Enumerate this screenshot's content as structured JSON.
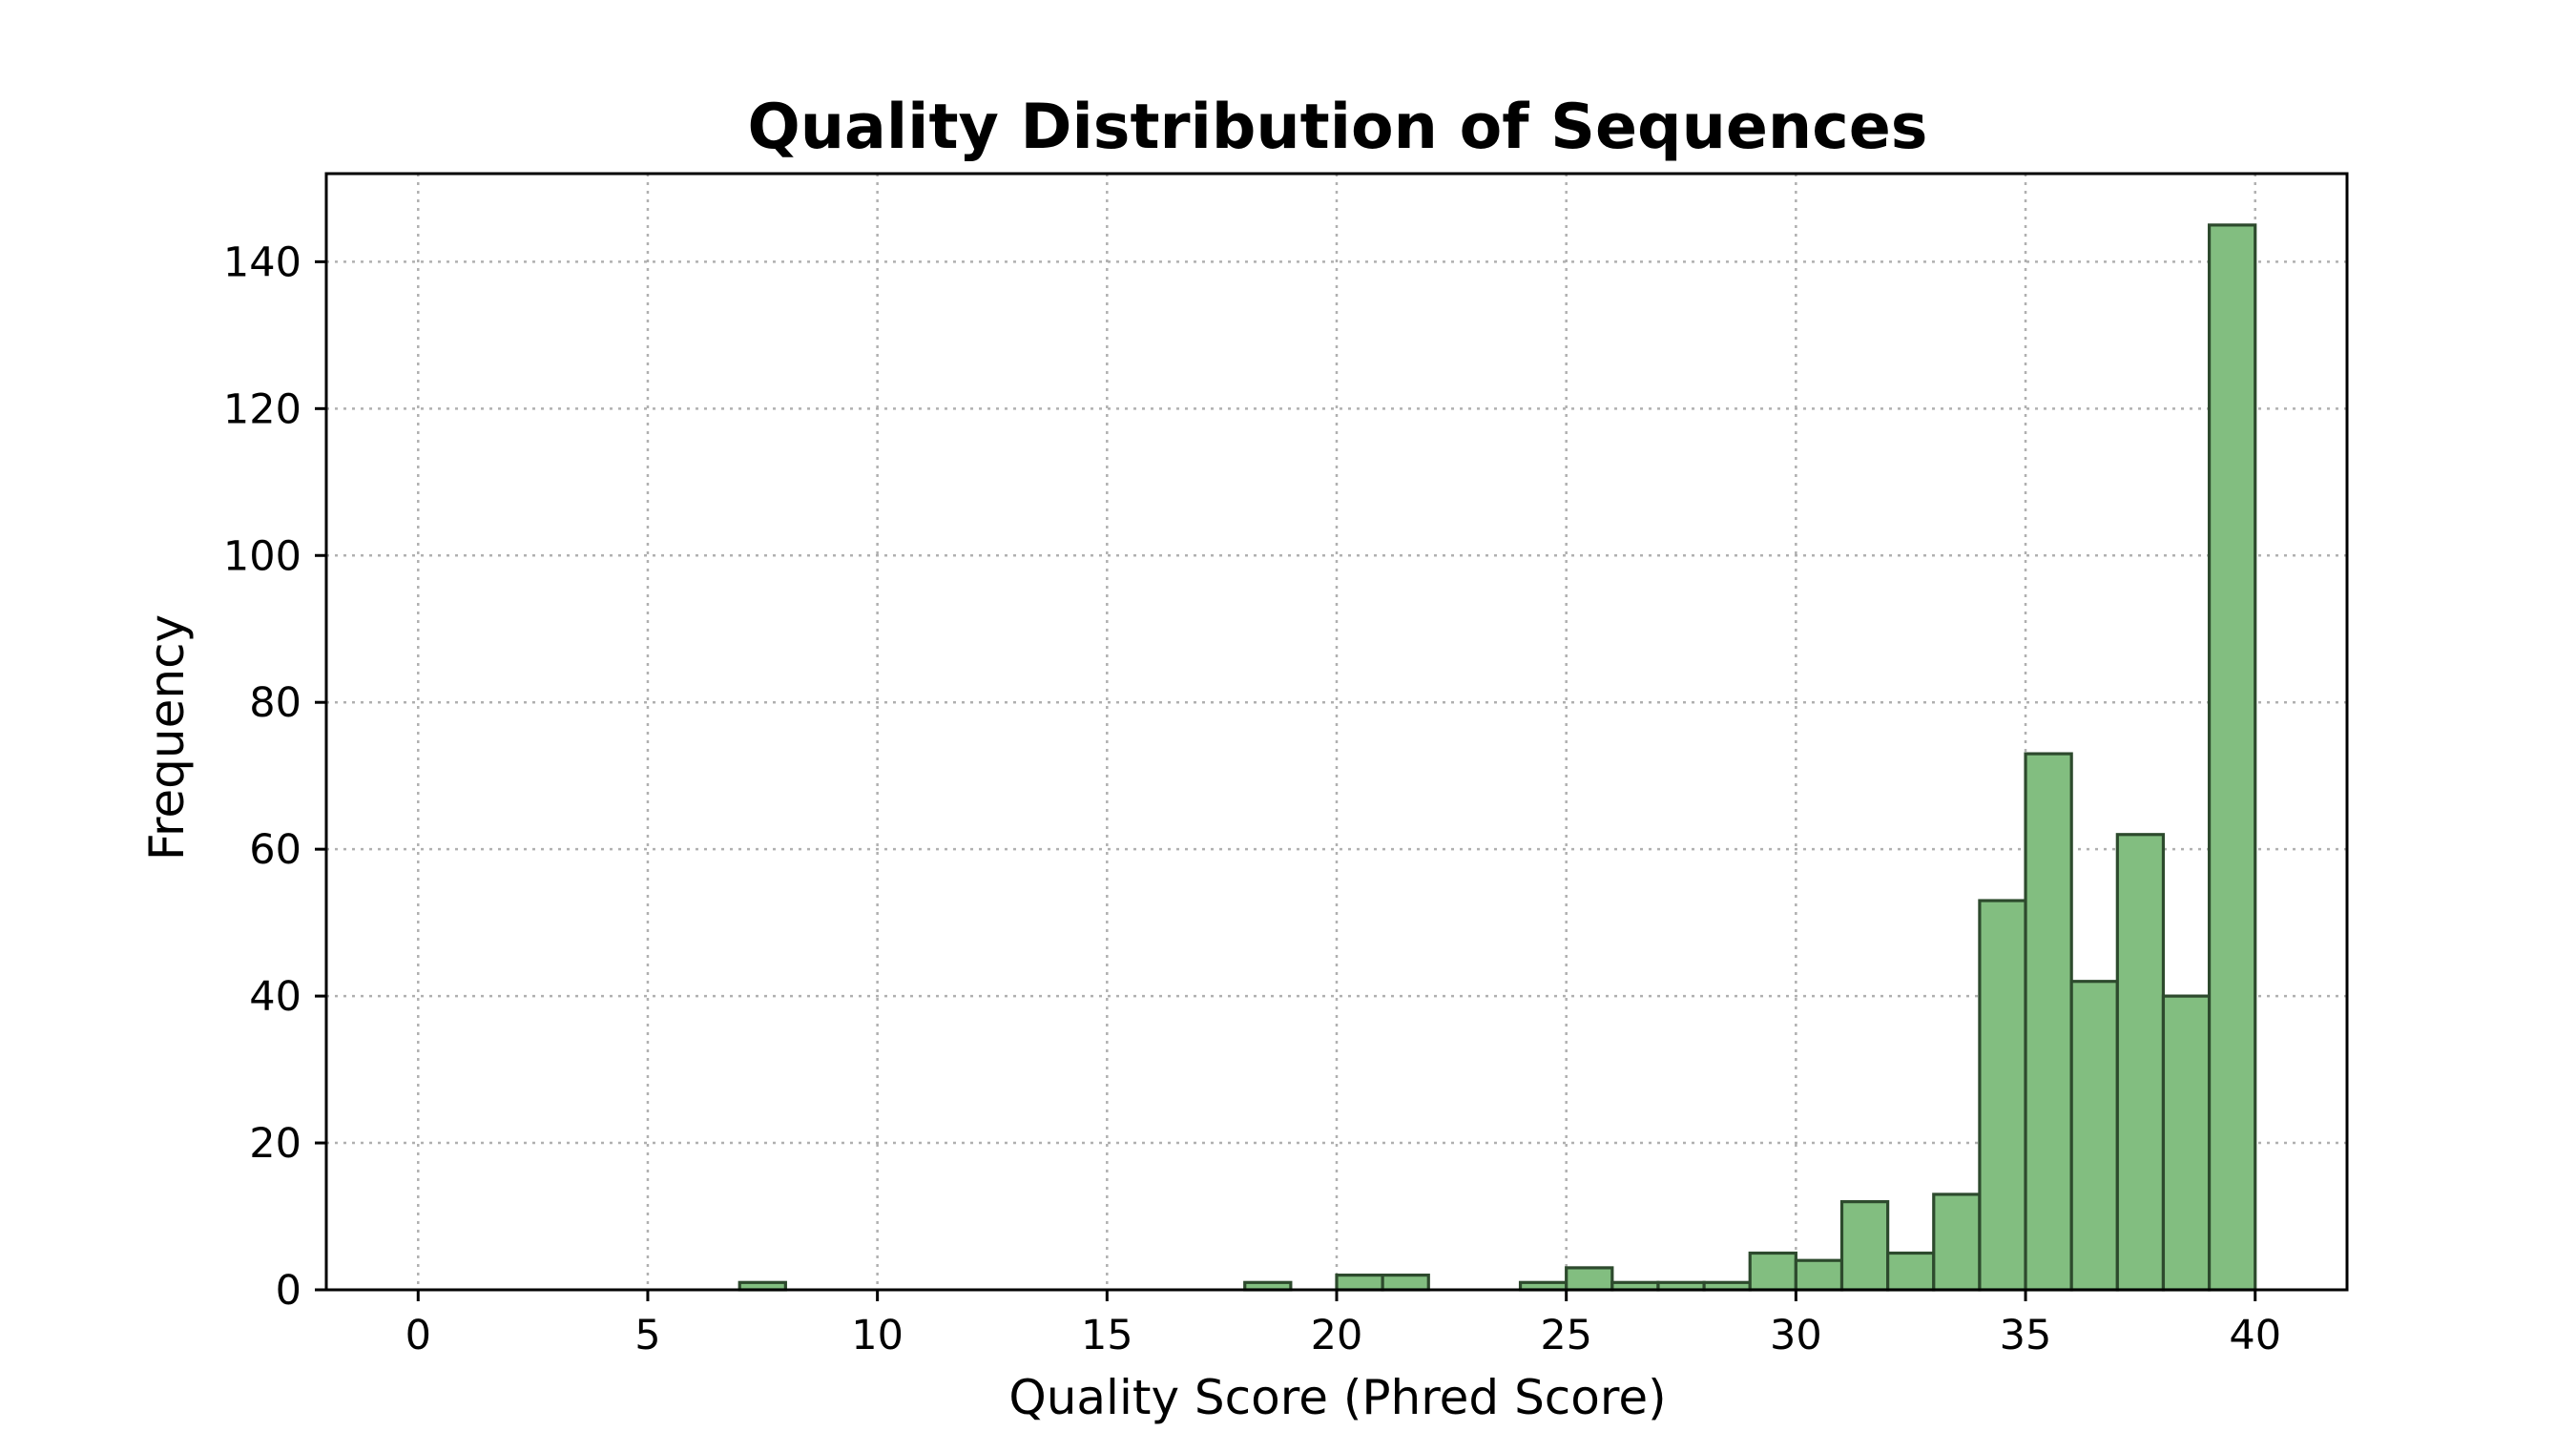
{
  "chart_data": {
    "type": "bar",
    "title": "Quality Distribution of Sequences",
    "xlabel": "Quality Score (Phred Score)",
    "ylabel": "Frequency",
    "xlim": [
      -2,
      42
    ],
    "ylim": [
      0,
      152
    ],
    "xticks": [
      0,
      5,
      10,
      15,
      20,
      25,
      30,
      35,
      40
    ],
    "yticks": [
      0,
      20,
      40,
      60,
      80,
      100,
      120,
      140
    ],
    "grid": true,
    "bin_width": 1,
    "bins": [
      {
        "x0": 7,
        "x1": 8,
        "count": 1
      },
      {
        "x0": 18,
        "x1": 19,
        "count": 1
      },
      {
        "x0": 20,
        "x1": 21,
        "count": 2
      },
      {
        "x0": 21,
        "x1": 22,
        "count": 2
      },
      {
        "x0": 24,
        "x1": 25,
        "count": 1
      },
      {
        "x0": 25,
        "x1": 26,
        "count": 3
      },
      {
        "x0": 26,
        "x1": 27,
        "count": 1
      },
      {
        "x0": 27,
        "x1": 28,
        "count": 1
      },
      {
        "x0": 28,
        "x1": 29,
        "count": 1
      },
      {
        "x0": 29,
        "x1": 30,
        "count": 5
      },
      {
        "x0": 30,
        "x1": 31,
        "count": 4
      },
      {
        "x0": 31,
        "x1": 32,
        "count": 12
      },
      {
        "x0": 32,
        "x1": 33,
        "count": 5
      },
      {
        "x0": 33,
        "x1": 34,
        "count": 13
      },
      {
        "x0": 34,
        "x1": 35,
        "count": 53
      },
      {
        "x0": 35,
        "x1": 36,
        "count": 73
      },
      {
        "x0": 36,
        "x1": 37,
        "count": 42
      },
      {
        "x0": 37,
        "x1": 38,
        "count": 62
      },
      {
        "x0": 38,
        "x1": 39,
        "count": 40
      },
      {
        "x0": 39,
        "x1": 40,
        "count": 145
      }
    ],
    "colors": {
      "bar_fill": "#82be80",
      "bar_edge": "#2d4a2d"
    }
  }
}
